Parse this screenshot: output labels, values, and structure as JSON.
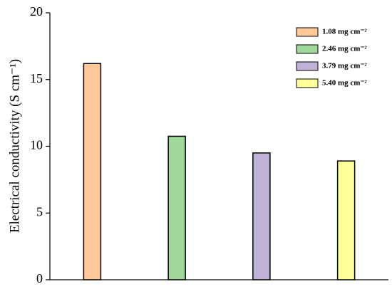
{
  "chart_data": {
    "type": "bar",
    "y_label": "Electrical conductivity (S cm⁻¹)",
    "categories": [
      null
    ],
    "series": [
      {
        "name": "1.08 mg cm⁻²",
        "color": "#ffc896",
        "values": [
          16.2
        ]
      },
      {
        "name": "2.46 mg cm⁻²",
        "color": "#9ed89a",
        "values": [
          10.75
        ]
      },
      {
        "name": "3.79 mg cm⁻²",
        "color": "#bfb0d8",
        "values": [
          9.5
        ]
      },
      {
        "name": "5.40 mg cm⁻²",
        "color": "#ffff99",
        "values": [
          8.9
        ]
      }
    ],
    "ylim": [
      0,
      20
    ],
    "yticks": [
      0,
      5,
      10,
      15,
      20
    ],
    "legend": "top-right"
  }
}
